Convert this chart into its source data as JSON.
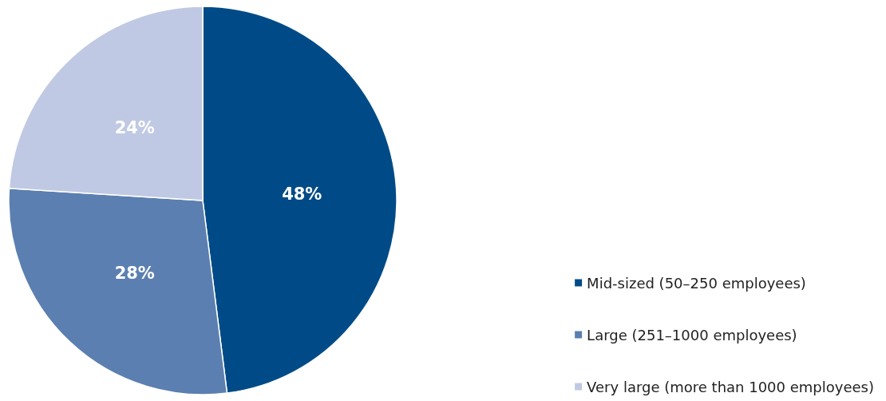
{
  "chart_data": {
    "type": "pie",
    "categories": [
      "Mid-sized (50–250 employees)",
      "Large (251–1000 employees)",
      "Very large (more than 1000 employees)"
    ],
    "values": [
      48,
      28,
      24
    ],
    "value_labels": [
      "48%",
      "28%",
      "24%"
    ],
    "colors": [
      "#004b87",
      "#5b7fb0",
      "#c0c9e3"
    ],
    "legend": "bottom right"
  }
}
